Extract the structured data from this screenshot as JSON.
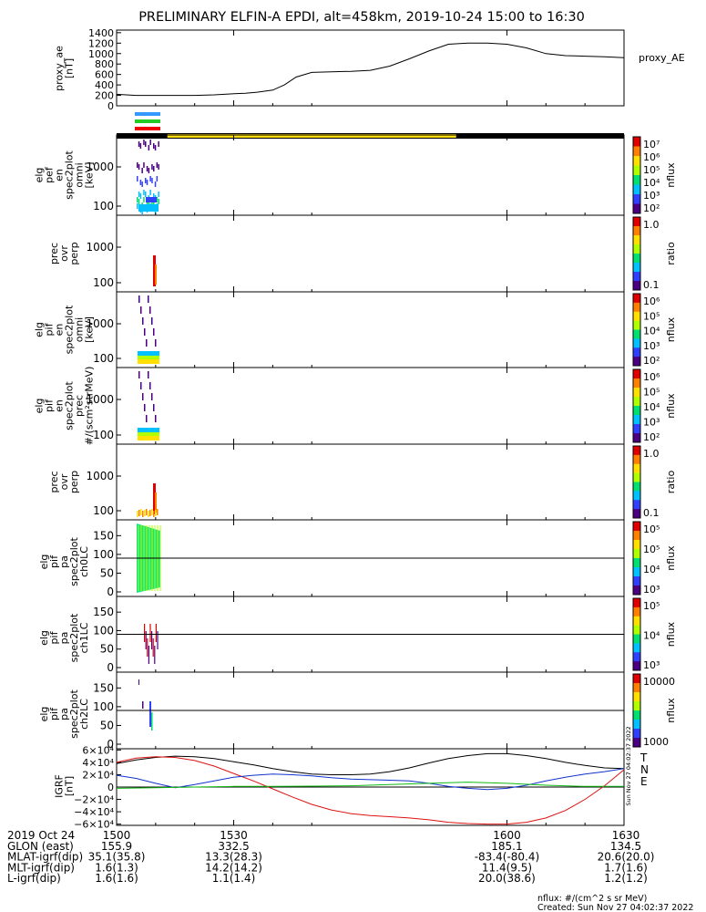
{
  "title": "PRELIMINARY ELFIN-A EPDI, alt=458km, 2019-10-24 15:00 to 16:30",
  "colors": {
    "black": "#000000",
    "red": "#dd1111",
    "blue": "#1133cc",
    "green": "#11bb11",
    "yellow": "#ffdd11",
    "cbar": [
      "#ffffff",
      "#4b0082",
      "#3040ff",
      "#00c0ff",
      "#00e070",
      "#b0ff00",
      "#ffe000",
      "#ff8000",
      "#e00000"
    ]
  },
  "tbar": {
    "cyan": "#3399ff",
    "green": "#22cc22",
    "red": "#ee0000"
  },
  "footnote": "nflux: #/(cm^2 s sr MeV)",
  "created": "Created: Sun Nov 27 04:02:37 2022",
  "stamp": "Sun Nov 27 04:02:37 2022",
  "chart_data": [
    {
      "type": "line",
      "ylabel": [
        "proxy_ae",
        "[nT]"
      ],
      "yticks": [
        "1400",
        "1200",
        "1000",
        "800",
        "600",
        "400",
        "200",
        "0"
      ],
      "tick_values": [
        1400,
        1200,
        1000,
        800,
        600,
        400,
        200,
        0
      ],
      "ylim": [
        0,
        1450
      ],
      "series": [
        {
          "name": "proxy_AE",
          "x": [
            1500,
            1505,
            1510,
            1515,
            1520,
            1525,
            1530,
            1533,
            1536,
            1540,
            1543,
            1546,
            1550,
            1555,
            1560,
            1565,
            1570,
            1575,
            1580,
            1585,
            1590,
            1595,
            1600,
            1605,
            1610,
            1615,
            1620,
            1625,
            1630
          ],
          "values": [
            220,
            200,
            200,
            200,
            200,
            210,
            230,
            240,
            260,
            300,
            400,
            550,
            640,
            650,
            660,
            680,
            760,
            900,
            1050,
            1180,
            1200,
            1200,
            1180,
            1110,
            1000,
            960,
            950,
            940,
            920
          ]
        }
      ]
    },
    {
      "type": "heatmap",
      "ylabel": [
        "elg",
        "pef",
        "en",
        "spec2plot",
        "omni",
        "[keV]"
      ],
      "yticks": [
        "1000",
        "100"
      ],
      "colorbar": {
        "label": "nflux",
        "ticks": [
          "10⁷",
          "10⁶",
          "10⁵",
          "10⁴",
          "10³",
          "10²"
        ]
      }
    },
    {
      "type": "heatmap",
      "ylabel": [
        "prec",
        "ovr",
        "perp"
      ],
      "yticks": [
        "1000",
        "100"
      ],
      "colorbar": {
        "label": "ratio",
        "ticks": [
          "1.0",
          "0.1"
        ]
      }
    },
    {
      "type": "heatmap",
      "ylabel": [
        "elg",
        "pif",
        "en",
        "spec2plot",
        "omni",
        "[keV]"
      ],
      "yticks": [
        "1000",
        "100"
      ],
      "colorbar": {
        "label": "nflux",
        "ticks": [
          "10⁶",
          "10⁵",
          "10⁴",
          "10³",
          "10²"
        ]
      }
    },
    {
      "type": "heatmap",
      "ylabel": [
        "elg",
        "pif",
        "en",
        "spec2plot",
        "prec",
        "#/(scm²strMeV)"
      ],
      "yticks": [
        "1000",
        "100"
      ],
      "colorbar": {
        "label": "nflux",
        "ticks": [
          "10⁶",
          "10⁵",
          "10⁴",
          "10³",
          "10²"
        ]
      }
    },
    {
      "type": "heatmap",
      "ylabel": [
        "prec",
        "ovr",
        "perp"
      ],
      "yticks": [
        "1000",
        "100"
      ],
      "colorbar": {
        "label": "ratio",
        "ticks": [
          "1.0",
          "0.1"
        ]
      }
    },
    {
      "type": "heatmap",
      "ylabel": [
        "elg",
        "pif",
        "pa",
        "spec2plot",
        "ch0LC"
      ],
      "yticks": [
        "150",
        "100",
        "50",
        "0"
      ],
      "colorbar": {
        "label": "nflux",
        "ticks": [
          "10⁵",
          "10⁵",
          "10⁴",
          "10³"
        ]
      }
    },
    {
      "type": "heatmap",
      "ylabel": [
        "elg",
        "pif",
        "pa",
        "spec2plot",
        "ch1LC"
      ],
      "yticks": [
        "150",
        "100",
        "50",
        "0"
      ],
      "colorbar": {
        "label": "nflux",
        "ticks": [
          "10⁵",
          "10⁴",
          "10³"
        ]
      }
    },
    {
      "type": "heatmap",
      "ylabel": [
        "elg",
        "pif",
        "pa",
        "spec2plot",
        "ch2LC"
      ],
      "yticks": [
        "150",
        "100",
        "50",
        "0"
      ],
      "colorbar": {
        "label": "nflux",
        "ticks": [
          "10000",
          "1000"
        ]
      }
    },
    {
      "type": "line",
      "ylabel": [
        "IGRF",
        "[nT]"
      ],
      "yticks": [
        "6×10⁴",
        "4×10⁴",
        "2×10⁴",
        "0",
        "−2×10⁴",
        "−4×10⁴",
        "−6×10⁴"
      ],
      "tick_values": [
        60000,
        40000,
        20000,
        0,
        -20000,
        -40000,
        -60000
      ],
      "ylim": [
        -62000,
        62000
      ],
      "legend": [
        "T",
        "N",
        "E"
      ],
      "series": [
        {
          "name": "T",
          "color": "#000000",
          "x": [
            1500,
            1505,
            1510,
            1515,
            1520,
            1525,
            1530,
            1535,
            1540,
            1545,
            1550,
            1555,
            1560,
            1565,
            1570,
            1575,
            1580,
            1585,
            1590,
            1595,
            1600,
            1605,
            1610,
            1615,
            1620,
            1625,
            1630
          ],
          "values": [
            38000,
            44000,
            48000,
            50000,
            49000,
            46000,
            41000,
            36000,
            30000,
            25000,
            21000,
            20000,
            20000,
            21000,
            25000,
            31000,
            39000,
            46000,
            51000,
            54000,
            54000,
            51000,
            46000,
            40000,
            35000,
            31000,
            30000
          ]
        },
        {
          "name": "N",
          "color": "#dd1111",
          "x": [
            1500,
            1505,
            1510,
            1515,
            1520,
            1525,
            1530,
            1535,
            1540,
            1545,
            1550,
            1555,
            1560,
            1565,
            1570,
            1575,
            1580,
            1585,
            1590,
            1595,
            1600,
            1605,
            1610,
            1615,
            1620,
            1625,
            1630
          ],
          "values": [
            40000,
            47000,
            49000,
            48000,
            43000,
            34000,
            22000,
            10000,
            -3000,
            -16000,
            -28000,
            -37000,
            -43000,
            -46000,
            -48000,
            -50000,
            -53000,
            -57000,
            -59000,
            -60000,
            -60000,
            -57000,
            -50000,
            -38000,
            -20000,
            2000,
            28000
          ]
        },
        {
          "name": "E",
          "color": "#1133cc",
          "x": [
            1500,
            1505,
            1510,
            1515,
            1520,
            1525,
            1530,
            1535,
            1540,
            1545,
            1550,
            1555,
            1560,
            1565,
            1570,
            1575,
            1580,
            1585,
            1590,
            1595,
            1600,
            1605,
            1610,
            1615,
            1620,
            1625,
            1630
          ],
          "values": [
            19000,
            14000,
            6000,
            -1000,
            4000,
            10000,
            16000,
            19000,
            21000,
            20000,
            18000,
            15000,
            13000,
            12000,
            11000,
            10000,
            6000,
            1000,
            -2000,
            -4000,
            -2000,
            3000,
            10000,
            16000,
            21000,
            25000,
            30000
          ]
        },
        {
          "name": "green",
          "color": "#11bb11",
          "x": [
            1500,
            1510,
            1520,
            1530,
            1540,
            1550,
            1560,
            1570,
            1580,
            1590,
            1600,
            1610,
            1620,
            1630
          ],
          "values": [
            -2000,
            -1000,
            0,
            1000,
            1000,
            1500,
            2000,
            4000,
            6000,
            8000,
            6000,
            3000,
            1000,
            1000
          ]
        }
      ]
    }
  ],
  "x_axis": {
    "xlim": [
      1500,
      1630
    ],
    "ticks": [
      1500,
      1530,
      1600,
      1630
    ],
    "tick_labels": [
      "1500",
      "1530",
      "1600",
      "1630"
    ],
    "minor_ticks": [
      1510,
      1520,
      1540,
      1550,
      1610,
      1620
    ]
  },
  "orbit_table": {
    "rows": [
      {
        "label": "2019 Oct 24",
        "values": [
          "1500",
          "1530",
          "1600",
          "1630"
        ]
      },
      {
        "label": "GLON (east)",
        "values": [
          "155.9",
          "332.5",
          "185.1",
          "134.5"
        ]
      },
      {
        "label": "MLAT-igrf(dip)",
        "values": [
          "35.1(35.8)",
          "13.3(28.3)",
          "-83.4(-80.4)",
          "20.6(20.0)"
        ]
      },
      {
        "label": "MLT-igrf(dip)",
        "values": [
          "1.6(1.3)",
          "14.2(14.2)",
          "11.4(9.5)",
          "1.7(1.6)"
        ]
      },
      {
        "label": "L-igrf(dip)",
        "values": [
          "1.6(1.6)",
          "1.1(1.4)",
          "20.0(38.6)",
          "1.2(1.2)"
        ]
      }
    ]
  }
}
